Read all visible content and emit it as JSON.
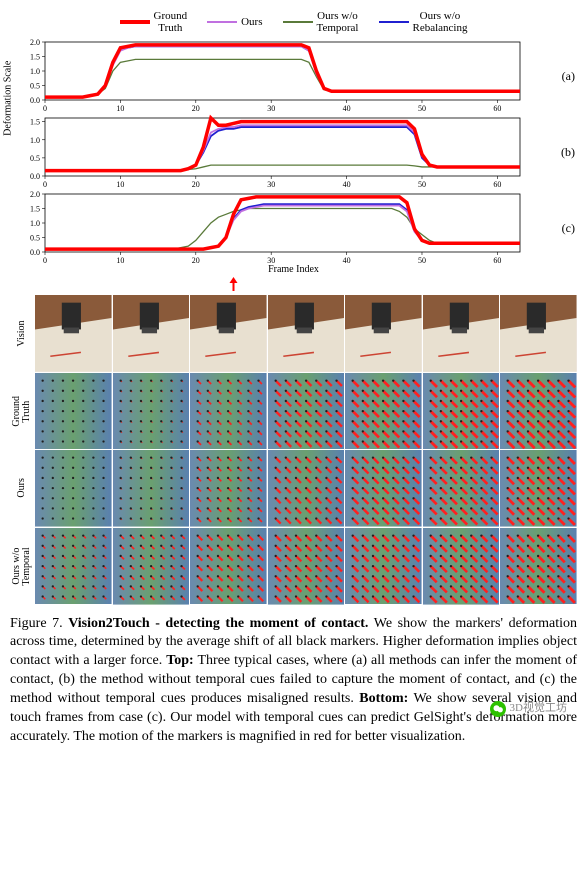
{
  "legend": [
    {
      "label": "Ground\nTruth",
      "color": "#ff0000",
      "width": 4
    },
    {
      "label": "Ours",
      "color": "#c070e0",
      "width": 2
    },
    {
      "label": "Ours w/o\nTemporal",
      "color": "#5a7a3a",
      "width": 1.5
    },
    {
      "label": "Ours w/o\nRebalancing",
      "color": "#2020d0",
      "width": 2
    }
  ],
  "subplots": [
    {
      "panel": "(a)",
      "xlim": [
        0,
        63
      ],
      "ylim": [
        0,
        2.0
      ],
      "yticks": [
        0.0,
        0.5,
        1.0,
        1.5,
        2.0
      ],
      "xticks": [
        0,
        10,
        20,
        30,
        40,
        50,
        60
      ],
      "series": {
        "gt": [
          0.1,
          0.1,
          0.1,
          0.1,
          0.1,
          0.1,
          0.15,
          0.2,
          0.5,
          1.3,
          1.8,
          1.85,
          1.9,
          1.9,
          1.9,
          1.9,
          1.9,
          1.9,
          1.9,
          1.9,
          1.9,
          1.9,
          1.9,
          1.9,
          1.9,
          1.9,
          1.9,
          1.9,
          1.9,
          1.9,
          1.9,
          1.9,
          1.9,
          1.9,
          1.9,
          1.8,
          1.0,
          0.4,
          0.3,
          0.3,
          0.3,
          0.3,
          0.3,
          0.3,
          0.3,
          0.3,
          0.3,
          0.3,
          0.3,
          0.3,
          0.3,
          0.3,
          0.3,
          0.3,
          0.3,
          0.3,
          0.3,
          0.3,
          0.3,
          0.3,
          0.3,
          0.3,
          0.3,
          0.3
        ],
        "ours": [
          0.1,
          0.1,
          0.1,
          0.1,
          0.1,
          0.1,
          0.15,
          0.2,
          0.5,
          1.2,
          1.7,
          1.8,
          1.85,
          1.85,
          1.85,
          1.85,
          1.85,
          1.85,
          1.85,
          1.85,
          1.85,
          1.85,
          1.85,
          1.85,
          1.85,
          1.85,
          1.85,
          1.85,
          1.85,
          1.85,
          1.85,
          1.85,
          1.85,
          1.85,
          1.85,
          1.7,
          0.9,
          0.4,
          0.3,
          0.3,
          0.3,
          0.3,
          0.3,
          0.3,
          0.3,
          0.3,
          0.3,
          0.3,
          0.3,
          0.3,
          0.3,
          0.3,
          0.3,
          0.3,
          0.3,
          0.3,
          0.3,
          0.3,
          0.3,
          0.3,
          0.3,
          0.3,
          0.3,
          0.3
        ],
        "wot": [
          0.1,
          0.1,
          0.1,
          0.1,
          0.1,
          0.1,
          0.15,
          0.2,
          0.4,
          1.0,
          1.3,
          1.35,
          1.4,
          1.4,
          1.4,
          1.4,
          1.4,
          1.4,
          1.4,
          1.4,
          1.4,
          1.4,
          1.4,
          1.4,
          1.4,
          1.4,
          1.4,
          1.4,
          1.4,
          1.4,
          1.4,
          1.4,
          1.4,
          1.4,
          1.4,
          1.3,
          0.8,
          0.35,
          0.3,
          0.3,
          0.3,
          0.3,
          0.3,
          0.3,
          0.3,
          0.3,
          0.3,
          0.3,
          0.3,
          0.3,
          0.3,
          0.3,
          0.3,
          0.3,
          0.3,
          0.3,
          0.3,
          0.3,
          0.3,
          0.3,
          0.3,
          0.3,
          0.3,
          0.3
        ],
        "wor": [
          0.1,
          0.1,
          0.1,
          0.1,
          0.1,
          0.1,
          0.15,
          0.2,
          0.5,
          1.25,
          1.75,
          1.8,
          1.85,
          1.85,
          1.85,
          1.85,
          1.85,
          1.85,
          1.85,
          1.85,
          1.85,
          1.85,
          1.85,
          1.85,
          1.85,
          1.85,
          1.85,
          1.85,
          1.85,
          1.85,
          1.85,
          1.85,
          1.85,
          1.85,
          1.85,
          1.7,
          0.95,
          0.4,
          0.3,
          0.3,
          0.3,
          0.3,
          0.3,
          0.3,
          0.3,
          0.3,
          0.3,
          0.3,
          0.3,
          0.3,
          0.3,
          0.3,
          0.3,
          0.3,
          0.3,
          0.3,
          0.3,
          0.3,
          0.3,
          0.3,
          0.3,
          0.3,
          0.3,
          0.3
        ]
      }
    },
    {
      "panel": "(b)",
      "xlim": [
        0,
        63
      ],
      "ylim": [
        0,
        1.6
      ],
      "yticks": [
        0.0,
        0.5,
        1.0,
        1.5
      ],
      "xticks": [
        0,
        10,
        20,
        30,
        40,
        50,
        60
      ],
      "series": {
        "gt": [
          0.15,
          0.15,
          0.15,
          0.15,
          0.15,
          0.15,
          0.15,
          0.15,
          0.15,
          0.15,
          0.15,
          0.15,
          0.15,
          0.15,
          0.15,
          0.15,
          0.15,
          0.15,
          0.15,
          0.2,
          0.3,
          0.8,
          1.6,
          1.4,
          1.4,
          1.45,
          1.5,
          1.5,
          1.5,
          1.5,
          1.5,
          1.5,
          1.5,
          1.5,
          1.5,
          1.5,
          1.5,
          1.5,
          1.5,
          1.5,
          1.5,
          1.5,
          1.5,
          1.5,
          1.5,
          1.5,
          1.5,
          1.5,
          1.5,
          1.3,
          0.6,
          0.3,
          0.25,
          0.25,
          0.25,
          0.25,
          0.25,
          0.25,
          0.25,
          0.25,
          0.25,
          0.25,
          0.25,
          0.25
        ],
        "ours": [
          0.15,
          0.15,
          0.15,
          0.15,
          0.15,
          0.15,
          0.15,
          0.15,
          0.15,
          0.15,
          0.15,
          0.15,
          0.15,
          0.15,
          0.15,
          0.15,
          0.15,
          0.15,
          0.15,
          0.2,
          0.3,
          0.7,
          1.2,
          1.3,
          1.35,
          1.35,
          1.4,
          1.4,
          1.4,
          1.4,
          1.4,
          1.4,
          1.4,
          1.4,
          1.4,
          1.4,
          1.4,
          1.4,
          1.4,
          1.4,
          1.4,
          1.4,
          1.4,
          1.4,
          1.4,
          1.4,
          1.4,
          1.4,
          1.4,
          1.2,
          0.55,
          0.3,
          0.25,
          0.25,
          0.25,
          0.25,
          0.25,
          0.25,
          0.25,
          0.25,
          0.25,
          0.25,
          0.25,
          0.25
        ],
        "wot": [
          0.15,
          0.15,
          0.15,
          0.15,
          0.15,
          0.15,
          0.15,
          0.15,
          0.15,
          0.15,
          0.15,
          0.15,
          0.15,
          0.15,
          0.15,
          0.15,
          0.15,
          0.15,
          0.15,
          0.18,
          0.2,
          0.25,
          0.3,
          0.3,
          0.3,
          0.3,
          0.3,
          0.3,
          0.3,
          0.3,
          0.3,
          0.3,
          0.3,
          0.3,
          0.3,
          0.3,
          0.3,
          0.3,
          0.3,
          0.3,
          0.3,
          0.3,
          0.3,
          0.3,
          0.3,
          0.3,
          0.3,
          0.3,
          0.3,
          0.28,
          0.25,
          0.25,
          0.25,
          0.25,
          0.25,
          0.25,
          0.25,
          0.25,
          0.25,
          0.25,
          0.25,
          0.25,
          0.25,
          0.25
        ],
        "wor": [
          0.15,
          0.15,
          0.15,
          0.15,
          0.15,
          0.15,
          0.15,
          0.15,
          0.15,
          0.15,
          0.15,
          0.15,
          0.15,
          0.15,
          0.15,
          0.15,
          0.15,
          0.15,
          0.15,
          0.2,
          0.3,
          0.65,
          1.1,
          1.25,
          1.3,
          1.3,
          1.35,
          1.35,
          1.35,
          1.35,
          1.35,
          1.35,
          1.35,
          1.35,
          1.35,
          1.35,
          1.35,
          1.35,
          1.35,
          1.35,
          1.35,
          1.35,
          1.35,
          1.35,
          1.35,
          1.35,
          1.35,
          1.35,
          1.35,
          1.15,
          0.5,
          0.3,
          0.25,
          0.25,
          0.25,
          0.25,
          0.25,
          0.25,
          0.25,
          0.25,
          0.25,
          0.25,
          0.25,
          0.25
        ]
      }
    },
    {
      "panel": "(c)",
      "xlim": [
        0,
        63
      ],
      "ylim": [
        0,
        2.0
      ],
      "yticks": [
        0.0,
        0.5,
        1.0,
        1.5,
        2.0
      ],
      "xticks": [
        0,
        10,
        20,
        30,
        40,
        50,
        60
      ],
      "series": {
        "gt": [
          0.1,
          0.1,
          0.1,
          0.1,
          0.1,
          0.1,
          0.1,
          0.1,
          0.1,
          0.1,
          0.1,
          0.1,
          0.1,
          0.1,
          0.1,
          0.1,
          0.1,
          0.1,
          0.1,
          0.1,
          0.1,
          0.1,
          0.15,
          0.2,
          0.5,
          1.3,
          1.8,
          1.85,
          1.9,
          1.9,
          1.9,
          1.9,
          1.9,
          1.9,
          1.9,
          1.9,
          1.9,
          1.9,
          1.9,
          1.9,
          1.9,
          1.9,
          1.9,
          1.9,
          1.9,
          1.9,
          1.9,
          1.9,
          1.7,
          0.8,
          0.4,
          0.3,
          0.3,
          0.3,
          0.3,
          0.3,
          0.3,
          0.3,
          0.3,
          0.3,
          0.3,
          0.3,
          0.3,
          0.3
        ],
        "ours": [
          0.1,
          0.1,
          0.1,
          0.1,
          0.1,
          0.1,
          0.1,
          0.1,
          0.1,
          0.1,
          0.1,
          0.1,
          0.1,
          0.1,
          0.1,
          0.1,
          0.1,
          0.1,
          0.1,
          0.1,
          0.1,
          0.1,
          0.15,
          0.2,
          0.5,
          1.1,
          1.4,
          1.5,
          1.55,
          1.6,
          1.6,
          1.6,
          1.6,
          1.6,
          1.6,
          1.6,
          1.6,
          1.6,
          1.6,
          1.6,
          1.6,
          1.6,
          1.6,
          1.6,
          1.6,
          1.6,
          1.6,
          1.6,
          1.4,
          0.7,
          0.4,
          0.3,
          0.3,
          0.3,
          0.3,
          0.3,
          0.3,
          0.3,
          0.3,
          0.3,
          0.3,
          0.3,
          0.3,
          0.3
        ],
        "wot": [
          0.1,
          0.1,
          0.1,
          0.1,
          0.1,
          0.1,
          0.1,
          0.1,
          0.1,
          0.1,
          0.1,
          0.1,
          0.1,
          0.1,
          0.1,
          0.1,
          0.1,
          0.1,
          0.15,
          0.2,
          0.4,
          0.7,
          1.0,
          1.2,
          1.3,
          1.4,
          1.45,
          1.5,
          1.5,
          1.5,
          1.5,
          1.5,
          1.5,
          1.5,
          1.5,
          1.5,
          1.5,
          1.5,
          1.5,
          1.5,
          1.5,
          1.5,
          1.5,
          1.5,
          1.5,
          1.5,
          1.5,
          1.4,
          1.2,
          0.8,
          0.6,
          0.4,
          0.3,
          0.3,
          0.3,
          0.3,
          0.3,
          0.3,
          0.3,
          0.3,
          0.3,
          0.3,
          0.3,
          0.3
        ],
        "wor": [
          0.1,
          0.1,
          0.1,
          0.1,
          0.1,
          0.1,
          0.1,
          0.1,
          0.1,
          0.1,
          0.1,
          0.1,
          0.1,
          0.1,
          0.1,
          0.1,
          0.1,
          0.1,
          0.1,
          0.1,
          0.1,
          0.1,
          0.15,
          0.2,
          0.5,
          1.15,
          1.45,
          1.55,
          1.6,
          1.65,
          1.65,
          1.65,
          1.65,
          1.65,
          1.65,
          1.65,
          1.65,
          1.65,
          1.65,
          1.65,
          1.65,
          1.65,
          1.65,
          1.65,
          1.65,
          1.65,
          1.65,
          1.65,
          1.45,
          0.75,
          0.4,
          0.3,
          0.3,
          0.3,
          0.3,
          0.3,
          0.3,
          0.3,
          0.3,
          0.3,
          0.3,
          0.3,
          0.3,
          0.3
        ]
      }
    }
  ],
  "xlabel": "Frame Index",
  "ylabel": "Deformation Scale",
  "arrow_frame": 25,
  "arrow_color": "#ff0000",
  "image_rows": [
    {
      "label": "Vision",
      "type": "vision"
    },
    {
      "label": "Ground\nTruth",
      "type": "gelsight",
      "density": [
        0.1,
        0.2,
        0.5,
        0.8,
        0.9,
        0.95,
        1.0
      ]
    },
    {
      "label": "Ours",
      "type": "gelsight",
      "density": [
        0.1,
        0.2,
        0.5,
        0.75,
        0.85,
        0.9,
        0.95
      ]
    },
    {
      "label": "Ours w/o\nTemporal",
      "type": "gelsight",
      "density": [
        0.4,
        0.5,
        0.7,
        0.8,
        0.85,
        0.9,
        0.95
      ]
    }
  ],
  "caption": {
    "fig_num": "Figure 7.",
    "title": "Vision2Touch - detecting the moment of contact.",
    "body": "We show the markers' deformation across time, determined by the average shift of all black markers. Higher deformation implies object contact with a larger force.",
    "top_label": "Top:",
    "top": "Three typical cases, where (a) all methods can infer the moment of contact, (b) the method without temporal cues failed to capture the moment of contact, and (c) the method without temporal cues produces misaligned results.",
    "bottom_label": "Bottom:",
    "bottom": "We show several vision and touch frames from case (c). Our model with temporal cues can predict GelSight's deformation more accurately. The motion of the markers is magnified in red for better visualization."
  },
  "watermark": "3D视觉工坊",
  "colors": {
    "gt": "#ff0000",
    "ours": "#c070e0",
    "wot": "#5a7a3a",
    "wor": "#2020d0",
    "axis": "#000000",
    "bg": "#ffffff"
  }
}
